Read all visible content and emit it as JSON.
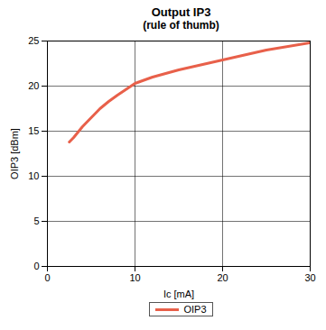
{
  "chart_data": {
    "type": "line",
    "title": "Output IP3",
    "subtitle": "(rule of thumb)",
    "x_label": "Ic [mA]",
    "y_label": "OIP3 [dBm]",
    "x": [
      2.5,
      3,
      4,
      5,
      6,
      7,
      8,
      10,
      12,
      15,
      20,
      25,
      30
    ],
    "series": [
      {
        "name": "OIP3",
        "color": "#e8604a",
        "values": [
          13.8,
          14.3,
          15.5,
          16.5,
          17.5,
          18.3,
          19,
          20.3,
          21,
          21.8,
          22.9,
          24,
          24.8
        ]
      }
    ],
    "xlim": [
      0,
      30
    ],
    "ylim": [
      0,
      25
    ],
    "xticks": [
      0,
      10,
      20,
      30
    ],
    "yticks": [
      0,
      5,
      10,
      15,
      20,
      25
    ],
    "grid": true,
    "legend": "bottom"
  }
}
